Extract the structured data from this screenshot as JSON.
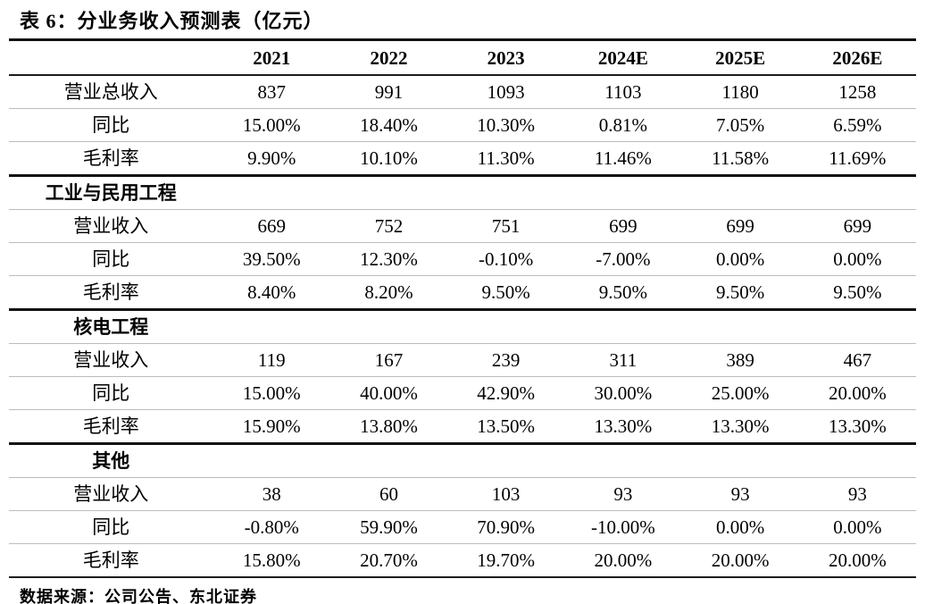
{
  "chart_data": {
    "type": "table",
    "title": "表 6：分业务收入预测表（亿元）",
    "source": "数据来源：公司公告、东北证券",
    "columns": [
      "2021",
      "2022",
      "2023",
      "2024E",
      "2025E",
      "2026E"
    ],
    "sections": [
      {
        "name": "",
        "rows": [
          {
            "label": "营业总收入",
            "values": [
              "837",
              "991",
              "1093",
              "1103",
              "1180",
              "1258"
            ]
          },
          {
            "label": "同比",
            "values": [
              "15.00%",
              "18.40%",
              "10.30%",
              "0.81%",
              "7.05%",
              "6.59%"
            ]
          },
          {
            "label": "毛利率",
            "values": [
              "9.90%",
              "10.10%",
              "11.30%",
              "11.46%",
              "11.58%",
              "11.69%"
            ]
          }
        ]
      },
      {
        "name": "工业与民用工程",
        "rows": [
          {
            "label": "营业收入",
            "values": [
              "669",
              "752",
              "751",
              "699",
              "699",
              "699"
            ]
          },
          {
            "label": "同比",
            "values": [
              "39.50%",
              "12.30%",
              "-0.10%",
              "-7.00%",
              "0.00%",
              "0.00%"
            ]
          },
          {
            "label": "毛利率",
            "values": [
              "8.40%",
              "8.20%",
              "9.50%",
              "9.50%",
              "9.50%",
              "9.50%"
            ]
          }
        ]
      },
      {
        "name": "核电工程",
        "rows": [
          {
            "label": "营业收入",
            "values": [
              "119",
              "167",
              "239",
              "311",
              "389",
              "467"
            ]
          },
          {
            "label": "同比",
            "values": [
              "15.00%",
              "40.00%",
              "42.90%",
              "30.00%",
              "25.00%",
              "20.00%"
            ]
          },
          {
            "label": "毛利率",
            "values": [
              "15.90%",
              "13.80%",
              "13.50%",
              "13.30%",
              "13.30%",
              "13.30%"
            ]
          }
        ]
      },
      {
        "name": "其他",
        "rows": [
          {
            "label": "营业收入",
            "values": [
              "38",
              "60",
              "103",
              "93",
              "93",
              "93"
            ]
          },
          {
            "label": "同比",
            "values": [
              "-0.80%",
              "59.90%",
              "70.90%",
              "-10.00%",
              "0.00%",
              "0.00%"
            ]
          },
          {
            "label": "毛利率",
            "values": [
              "15.80%",
              "20.70%",
              "19.70%",
              "20.00%",
              "20.00%",
              "20.00%"
            ]
          }
        ]
      }
    ]
  }
}
